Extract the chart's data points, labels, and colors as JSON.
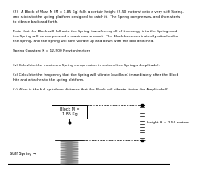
{
  "text_lines": [
    "(2)   A Block of Mass M (M = 1.85 Kg) falls a certain height (2.50 meters) onto a very stiff Spring,",
    "and sticks to the spring platform designed to catch it.  The Spring compresses, and then starts",
    "to vibrate back and forth.",
    "",
    "Note that the Block will fall onto the Spring, transferring all of its energy into the Spring, and",
    "the Spring will be compressed a maximum amount.  The Block becomes instantly attached to",
    "the Spring, and the Spring will now vibrate up and down with the Box attached.",
    "",
    "Spring Constant K = 12,500 Newton/meters",
    "",
    "",
    "(a) Calculate the maximum Spring compression in meters (the Spring's Amplitude).",
    "",
    "(b) Calculate the frequency that the Spring will vibrate (oscillate) immediately after the Block",
    "hits and attaches to the spring platform.",
    "",
    "(c) What is the full up+down distance that the Block will vibrate (twice the Amplitude)?"
  ],
  "block_label": "Block M =\n1.85 Kg",
  "height_label": "Height H = 2.50 meters",
  "spring_label": "Stiff Spring →",
  "text_color": "#000000",
  "text_fontsize": 3.2,
  "diagram_text_fontsize": 3.5
}
